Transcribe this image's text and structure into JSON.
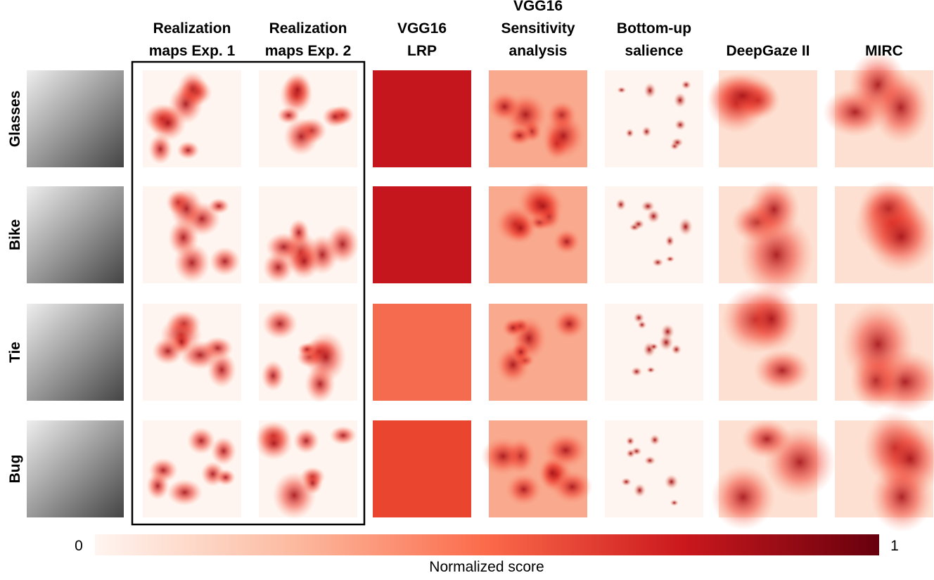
{
  "columns": [
    [
      "Realization",
      "maps Exp. 1"
    ],
    [
      "Realization",
      "maps Exp. 2"
    ],
    [
      "VGG16",
      "LRP"
    ],
    [
      "VGG16",
      "Sensitivity",
      "analysis"
    ],
    [
      "Bottom-up",
      "salience"
    ],
    [
      "DeepGaze II"
    ],
    [
      "MIRC"
    ]
  ],
  "rows": [
    "Glasses",
    "Bike",
    "Tie",
    "Bug"
  ],
  "colorbar": {
    "min": "0",
    "max": "1",
    "label": "Normalized score"
  }
}
